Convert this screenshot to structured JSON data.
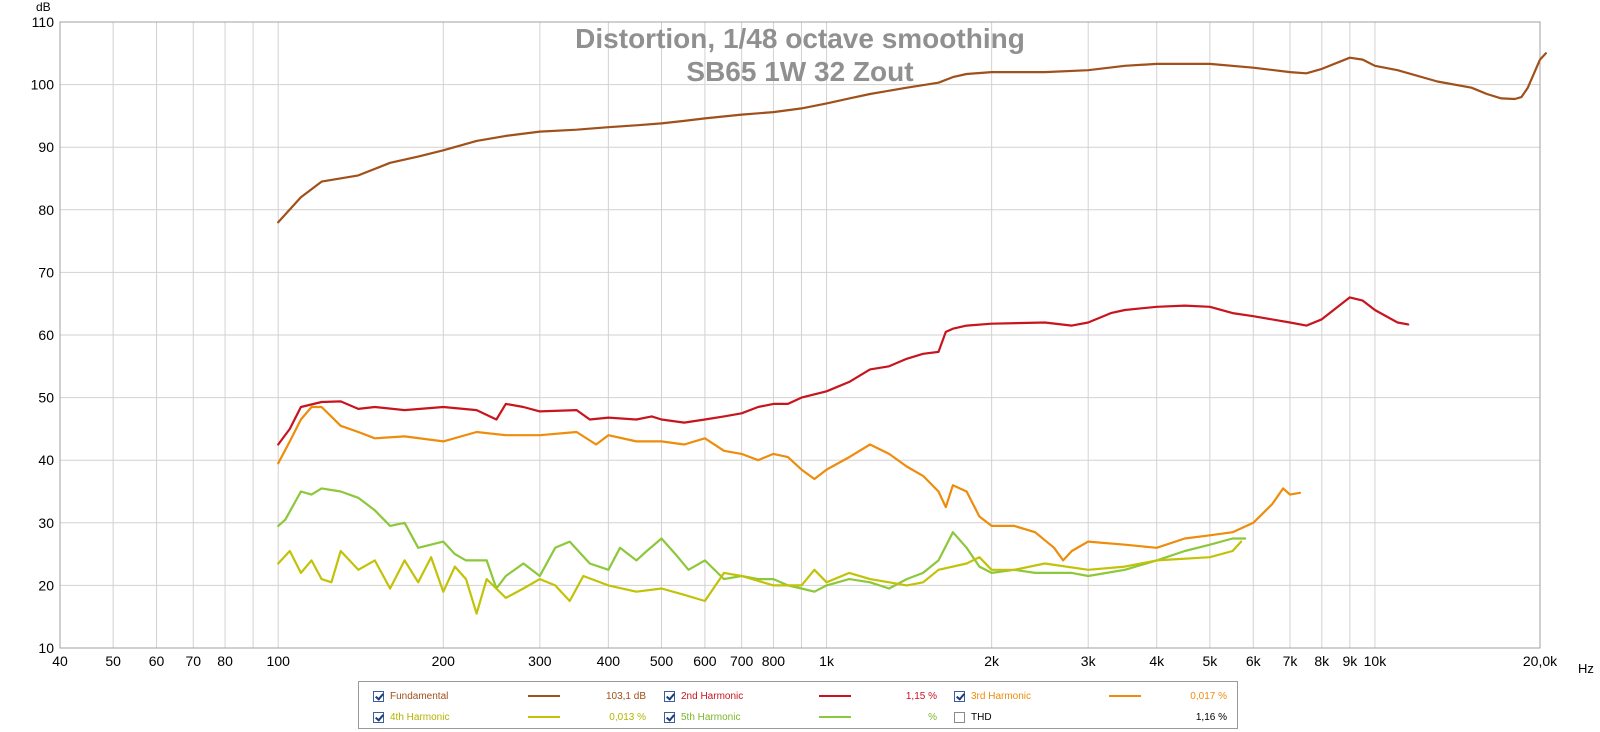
{
  "chart_data": {
    "type": "line",
    "title": "Distortion, 1/48 octave smoothing",
    "subtitle": "SB65 1W 32 Zout",
    "xlabel": "Hz",
    "ylabel": "dB",
    "xscale": "log",
    "xlim": [
      40,
      20000
    ],
    "ylim": [
      10,
      110
    ],
    "yticks": [
      10,
      20,
      30,
      40,
      50,
      60,
      70,
      80,
      90,
      100,
      110
    ],
    "xtick_labels": [
      {
        "v": 40,
        "label": "40"
      },
      {
        "v": 50,
        "label": "50"
      },
      {
        "v": 60,
        "label": "60"
      },
      {
        "v": 70,
        "label": "70"
      },
      {
        "v": 80,
        "label": "80"
      },
      {
        "v": 100,
        "label": "100"
      },
      {
        "v": 200,
        "label": "200"
      },
      {
        "v": 300,
        "label": "300"
      },
      {
        "v": 400,
        "label": "400"
      },
      {
        "v": 500,
        "label": "500"
      },
      {
        "v": 600,
        "label": "600"
      },
      {
        "v": 700,
        "label": "700"
      },
      {
        "v": 800,
        "label": "800"
      },
      {
        "v": 1000,
        "label": "1k"
      },
      {
        "v": 2000,
        "label": "2k"
      },
      {
        "v": 3000,
        "label": "3k"
      },
      {
        "v": 4000,
        "label": "4k"
      },
      {
        "v": 5000,
        "label": "5k"
      },
      {
        "v": 6000,
        "label": "6k"
      },
      {
        "v": 7000,
        "label": "7k"
      },
      {
        "v": 8000,
        "label": "8k"
      },
      {
        "v": 9000,
        "label": "9k"
      },
      {
        "v": 10000,
        "label": "10k"
      },
      {
        "v": 20000,
        "label": "20,0k"
      }
    ],
    "grid": true,
    "legend_position": "bottom",
    "series": [
      {
        "name": "Fundamental",
        "color": "#a0501a",
        "value": "103,1 dB",
        "points": [
          [
            100,
            78
          ],
          [
            110,
            82
          ],
          [
            120,
            84.5
          ],
          [
            140,
            85.5
          ],
          [
            160,
            87.5
          ],
          [
            180,
            88.5
          ],
          [
            200,
            89.5
          ],
          [
            230,
            91
          ],
          [
            260,
            91.8
          ],
          [
            300,
            92.5
          ],
          [
            350,
            92.8
          ],
          [
            400,
            93.2
          ],
          [
            450,
            93.5
          ],
          [
            500,
            93.8
          ],
          [
            550,
            94.2
          ],
          [
            600,
            94.6
          ],
          [
            700,
            95.2
          ],
          [
            800,
            95.6
          ],
          [
            900,
            96.2
          ],
          [
            1000,
            97
          ],
          [
            1100,
            97.8
          ],
          [
            1200,
            98.5
          ],
          [
            1400,
            99.5
          ],
          [
            1600,
            100.3
          ],
          [
            1700,
            101.2
          ],
          [
            1800,
            101.7
          ],
          [
            2000,
            102
          ],
          [
            2500,
            102
          ],
          [
            3000,
            102.3
          ],
          [
            3500,
            103
          ],
          [
            4000,
            103.3
          ],
          [
            5000,
            103.3
          ],
          [
            6000,
            102.7
          ],
          [
            7000,
            102
          ],
          [
            7500,
            101.8
          ],
          [
            8000,
            102.5
          ],
          [
            9000,
            104.3
          ],
          [
            9500,
            104
          ],
          [
            10000,
            103
          ],
          [
            11000,
            102.3
          ],
          [
            13000,
            100.5
          ],
          [
            15000,
            99.5
          ],
          [
            16000,
            98.5
          ],
          [
            17000,
            97.8
          ],
          [
            18000,
            97.7
          ],
          [
            18500,
            98
          ],
          [
            19000,
            99.5
          ],
          [
            20000,
            104
          ],
          [
            20500,
            105
          ]
        ]
      },
      {
        "name": "2nd Harmonic",
        "color": "#c8141e",
        "value": "1,15 %",
        "points": [
          [
            100,
            42.5
          ],
          [
            105,
            45
          ],
          [
            110,
            48.5
          ],
          [
            120,
            49.3
          ],
          [
            130,
            49.4
          ],
          [
            140,
            48.2
          ],
          [
            150,
            48.5
          ],
          [
            170,
            48
          ],
          [
            200,
            48.5
          ],
          [
            230,
            48
          ],
          [
            250,
            46.5
          ],
          [
            260,
            49
          ],
          [
            280,
            48.5
          ],
          [
            300,
            47.8
          ],
          [
            350,
            48
          ],
          [
            370,
            46.5
          ],
          [
            400,
            46.8
          ],
          [
            450,
            46.5
          ],
          [
            480,
            47
          ],
          [
            500,
            46.5
          ],
          [
            550,
            46
          ],
          [
            600,
            46.5
          ],
          [
            650,
            47
          ],
          [
            700,
            47.5
          ],
          [
            750,
            48.5
          ],
          [
            800,
            49
          ],
          [
            850,
            49
          ],
          [
            900,
            50
          ],
          [
            1000,
            51
          ],
          [
            1100,
            52.5
          ],
          [
            1200,
            54.5
          ],
          [
            1300,
            55
          ],
          [
            1400,
            56.2
          ],
          [
            1500,
            57
          ],
          [
            1600,
            57.3
          ],
          [
            1650,
            60.5
          ],
          [
            1700,
            61
          ],
          [
            1800,
            61.5
          ],
          [
            2000,
            61.8
          ],
          [
            2500,
            62
          ],
          [
            2800,
            61.5
          ],
          [
            3000,
            62
          ],
          [
            3300,
            63.5
          ],
          [
            3500,
            64
          ],
          [
            4000,
            64.5
          ],
          [
            4500,
            64.7
          ],
          [
            5000,
            64.5
          ],
          [
            5500,
            63.5
          ],
          [
            6000,
            63
          ],
          [
            7000,
            62
          ],
          [
            7500,
            61.5
          ],
          [
            8000,
            62.5
          ],
          [
            9000,
            66
          ],
          [
            9500,
            65.5
          ],
          [
            10000,
            64
          ],
          [
            11000,
            62
          ],
          [
            11500,
            61.7
          ]
        ]
      },
      {
        "name": "3rd Harmonic",
        "color": "#ee8c0c",
        "value": "0,017 %",
        "points": [
          [
            100,
            39.5
          ],
          [
            105,
            43
          ],
          [
            110,
            46.5
          ],
          [
            115,
            48.5
          ],
          [
            120,
            48.5
          ],
          [
            130,
            45.5
          ],
          [
            140,
            44.5
          ],
          [
            150,
            43.5
          ],
          [
            170,
            43.8
          ],
          [
            200,
            43
          ],
          [
            230,
            44.5
          ],
          [
            260,
            44
          ],
          [
            300,
            44
          ],
          [
            350,
            44.5
          ],
          [
            380,
            42.5
          ],
          [
            400,
            44
          ],
          [
            450,
            43
          ],
          [
            500,
            43
          ],
          [
            550,
            42.5
          ],
          [
            600,
            43.5
          ],
          [
            650,
            41.5
          ],
          [
            700,
            41
          ],
          [
            750,
            40
          ],
          [
            800,
            41
          ],
          [
            850,
            40.5
          ],
          [
            900,
            38.5
          ],
          [
            950,
            37
          ],
          [
            1000,
            38.5
          ],
          [
            1100,
            40.5
          ],
          [
            1200,
            42.5
          ],
          [
            1300,
            41
          ],
          [
            1400,
            39
          ],
          [
            1500,
            37.5
          ],
          [
            1600,
            35
          ],
          [
            1650,
            32.5
          ],
          [
            1700,
            36
          ],
          [
            1800,
            35
          ],
          [
            1900,
            31
          ],
          [
            2000,
            29.5
          ],
          [
            2200,
            29.5
          ],
          [
            2400,
            28.5
          ],
          [
            2600,
            26
          ],
          [
            2700,
            24
          ],
          [
            2800,
            25.5
          ],
          [
            3000,
            27
          ],
          [
            3500,
            26.5
          ],
          [
            4000,
            26
          ],
          [
            4500,
            27.5
          ],
          [
            5000,
            28
          ],
          [
            5500,
            28.5
          ],
          [
            6000,
            30
          ],
          [
            6500,
            33
          ],
          [
            6800,
            35.5
          ],
          [
            7000,
            34.5
          ],
          [
            7300,
            34.8
          ]
        ]
      },
      {
        "name": "4th Harmonic",
        "color": "#c2c208",
        "value": "0,013 %",
        "points": [
          [
            100,
            23.5
          ],
          [
            105,
            25.5
          ],
          [
            110,
            22
          ],
          [
            115,
            24
          ],
          [
            120,
            21
          ],
          [
            125,
            20.5
          ],
          [
            130,
            25.5
          ],
          [
            140,
            22.5
          ],
          [
            150,
            24
          ],
          [
            160,
            19.5
          ],
          [
            170,
            24
          ],
          [
            180,
            20.5
          ],
          [
            190,
            24.5
          ],
          [
            200,
            19
          ],
          [
            210,
            23
          ],
          [
            220,
            21
          ],
          [
            230,
            15.5
          ],
          [
            240,
            21
          ],
          [
            260,
            18
          ],
          [
            280,
            19.5
          ],
          [
            300,
            21
          ],
          [
            320,
            20
          ],
          [
            340,
            17.5
          ],
          [
            360,
            21.5
          ],
          [
            400,
            20
          ],
          [
            450,
            19
          ],
          [
            500,
            19.5
          ],
          [
            550,
            18.5
          ],
          [
            600,
            17.5
          ],
          [
            650,
            22
          ],
          [
            700,
            21.5
          ],
          [
            800,
            20
          ],
          [
            900,
            20
          ],
          [
            950,
            22.5
          ],
          [
            1000,
            20.5
          ],
          [
            1100,
            22
          ],
          [
            1200,
            21
          ],
          [
            1300,
            20.5
          ],
          [
            1400,
            20
          ],
          [
            1500,
            20.5
          ],
          [
            1600,
            22.5
          ],
          [
            1800,
            23.5
          ],
          [
            1900,
            24.5
          ],
          [
            2000,
            22.5
          ],
          [
            2200,
            22.5
          ],
          [
            2500,
            23.5
          ],
          [
            3000,
            22.5
          ],
          [
            3500,
            23
          ],
          [
            4000,
            24
          ],
          [
            5000,
            24.5
          ],
          [
            5500,
            25.5
          ],
          [
            5700,
            27
          ]
        ]
      },
      {
        "name": "5th Harmonic",
        "color": "#8cc83a",
        "value": "%",
        "points": [
          [
            100,
            29.5
          ],
          [
            103,
            30.5
          ],
          [
            110,
            35
          ],
          [
            115,
            34.5
          ],
          [
            120,
            35.5
          ],
          [
            130,
            35
          ],
          [
            140,
            34
          ],
          [
            150,
            32
          ],
          [
            160,
            29.5
          ],
          [
            170,
            30
          ],
          [
            180,
            26
          ],
          [
            200,
            27
          ],
          [
            210,
            25
          ],
          [
            220,
            24
          ],
          [
            240,
            24
          ],
          [
            250,
            19.5
          ],
          [
            260,
            21.5
          ],
          [
            280,
            23.5
          ],
          [
            300,
            21.5
          ],
          [
            320,
            26
          ],
          [
            340,
            27
          ],
          [
            370,
            23.5
          ],
          [
            400,
            22.5
          ],
          [
            420,
            26
          ],
          [
            450,
            24
          ],
          [
            470,
            25.5
          ],
          [
            500,
            27.5
          ],
          [
            530,
            25
          ],
          [
            560,
            22.5
          ],
          [
            600,
            24
          ],
          [
            650,
            21
          ],
          [
            700,
            21.5
          ],
          [
            750,
            21
          ],
          [
            800,
            21
          ],
          [
            850,
            20
          ],
          [
            900,
            19.5
          ],
          [
            950,
            19
          ],
          [
            1000,
            20
          ],
          [
            1100,
            21
          ],
          [
            1200,
            20.5
          ],
          [
            1300,
            19.5
          ],
          [
            1400,
            21
          ],
          [
            1500,
            22
          ],
          [
            1600,
            24
          ],
          [
            1700,
            28.5
          ],
          [
            1800,
            26
          ],
          [
            1900,
            23
          ],
          [
            2000,
            22
          ],
          [
            2200,
            22.5
          ],
          [
            2400,
            22
          ],
          [
            2600,
            22
          ],
          [
            2800,
            22
          ],
          [
            3000,
            21.5
          ],
          [
            3500,
            22.5
          ],
          [
            4000,
            24
          ],
          [
            4500,
            25.5
          ],
          [
            5000,
            26.5
          ],
          [
            5500,
            27.5
          ],
          [
            5800,
            27.5
          ]
        ]
      }
    ]
  },
  "legend": {
    "items": [
      {
        "name": "Fundamental",
        "value": "103,1 dB",
        "color": "#a0501a",
        "checked": true
      },
      {
        "name": "2nd Harmonic",
        "value": "1,15 %",
        "color": "#c8141e",
        "checked": true
      },
      {
        "name": "3rd Harmonic",
        "value": "0,017 %",
        "color": "#ee8c0c",
        "checked": true
      },
      {
        "name": "4th Harmonic",
        "value": "0,013 %",
        "color": "#c2c208",
        "checked": true
      },
      {
        "name": "5th Harmonic",
        "value": "%",
        "color": "#8cc83a",
        "checked": true
      },
      {
        "name": "THD",
        "value": "1,16 %",
        "color": "#000000",
        "checked": false
      }
    ]
  }
}
